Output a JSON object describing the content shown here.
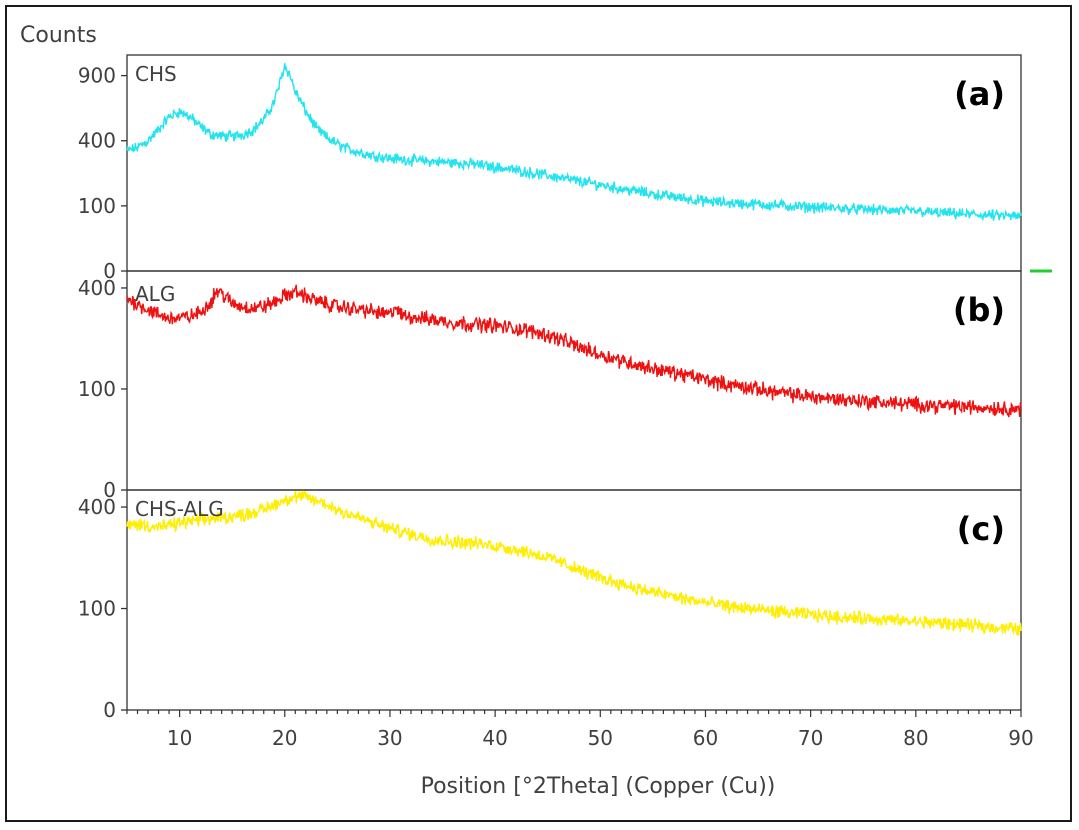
{
  "chart_data": {
    "type": "line",
    "ylabel": "Counts",
    "xlabel": "Position [°2Theta] (Copper (Cu))",
    "xlim": [
      5,
      90
    ],
    "x_ticks": [
      10,
      20,
      30,
      40,
      50,
      60,
      70,
      80,
      90
    ],
    "y_scale": "sqrt",
    "panels": [
      {
        "tag": "(a)",
        "series_name": "CHS",
        "color": "#22e3ee",
        "y_ticks": [
          0,
          100,
          400,
          900
        ],
        "ylim": [
          0,
          1100
        ],
        "noise": 18,
        "x": [
          5,
          6,
          7,
          8,
          9,
          10,
          11,
          12,
          13,
          14,
          15,
          16,
          17,
          18,
          18.5,
          19,
          19.5,
          20,
          20.5,
          21,
          22,
          23,
          24,
          25,
          26,
          28,
          30,
          32,
          35,
          38,
          40,
          42,
          45,
          48,
          50,
          52,
          55,
          58,
          60,
          62,
          65,
          68,
          70,
          72,
          75,
          78,
          80,
          82,
          85,
          88,
          90
        ],
        "y": [
          340,
          360,
          400,
          470,
          560,
          600,
          560,
          490,
          440,
          430,
          425,
          440,
          470,
          540,
          600,
          680,
          820,
          1000,
          900,
          760,
          600,
          480,
          420,
          380,
          350,
          320,
          300,
          290,
          280,
          270,
          255,
          240,
          215,
          190,
          175,
          160,
          140,
          125,
          115,
          110,
          105,
          100,
          97,
          94,
          90,
          86,
          84,
          80,
          76,
          72,
          70
        ]
      },
      {
        "tag": "(b)",
        "series_name": "ALG",
        "color": "#ef1010",
        "y_ticks": [
          0,
          100,
          400
        ],
        "ylim": [
          0,
          470
        ],
        "noise": 16,
        "x": [
          5,
          6,
          7,
          8,
          9,
          10,
          11,
          12,
          13,
          13.5,
          14,
          15,
          16,
          17,
          18,
          19,
          20,
          21,
          22,
          23,
          24,
          25,
          26,
          28,
          30,
          30.5,
          31,
          32,
          34,
          36,
          38,
          40,
          42,
          44,
          46,
          48,
          50,
          52,
          54,
          56,
          58,
          60,
          62,
          65,
          68,
          70,
          72,
          75,
          78,
          80,
          82,
          85,
          88,
          90
        ],
        "y": [
          360,
          340,
          320,
          300,
          290,
          290,
          295,
          310,
          350,
          390,
          380,
          340,
          330,
          325,
          330,
          345,
          370,
          385,
          370,
          350,
          340,
          330,
          325,
          315,
          300,
          330,
          300,
          295,
          285,
          275,
          270,
          265,
          255,
          245,
          225,
          200,
          180,
          165,
          150,
          140,
          130,
          120,
          110,
          100,
          90,
          86,
          82,
          78,
          74,
          72,
          70,
          68,
          66,
          64
        ]
      },
      {
        "tag": "(c)",
        "series_name": "CHS-ALG",
        "color": "#ffee00",
        "y_ticks": [
          0,
          100,
          400
        ],
        "ylim": [
          0,
          470
        ],
        "noise": 14,
        "x": [
          5,
          6,
          7,
          8,
          9,
          10,
          11,
          12,
          13,
          14,
          15,
          16,
          17,
          18,
          19,
          20,
          21,
          22,
          23,
          24,
          25,
          26,
          27,
          28,
          30,
          32,
          34,
          36,
          38,
          40,
          42,
          44,
          46,
          48,
          50,
          52,
          54,
          56,
          58,
          60,
          62,
          65,
          68,
          70,
          72,
          75,
          78,
          80,
          82,
          85,
          88,
          90
        ],
        "y": [
          330,
          335,
          330,
          325,
          330,
          340,
          345,
          350,
          355,
          360,
          365,
          370,
          380,
          390,
          410,
          430,
          440,
          440,
          425,
          410,
          390,
          375,
          360,
          345,
          320,
          300,
          285,
          275,
          270,
          262,
          250,
          235,
          215,
          190,
          170,
          155,
          140,
          130,
          120,
          112,
          105,
          98,
          92,
          88,
          85,
          82,
          78,
          76,
          74,
          70,
          66,
          64
        ]
      }
    ]
  }
}
